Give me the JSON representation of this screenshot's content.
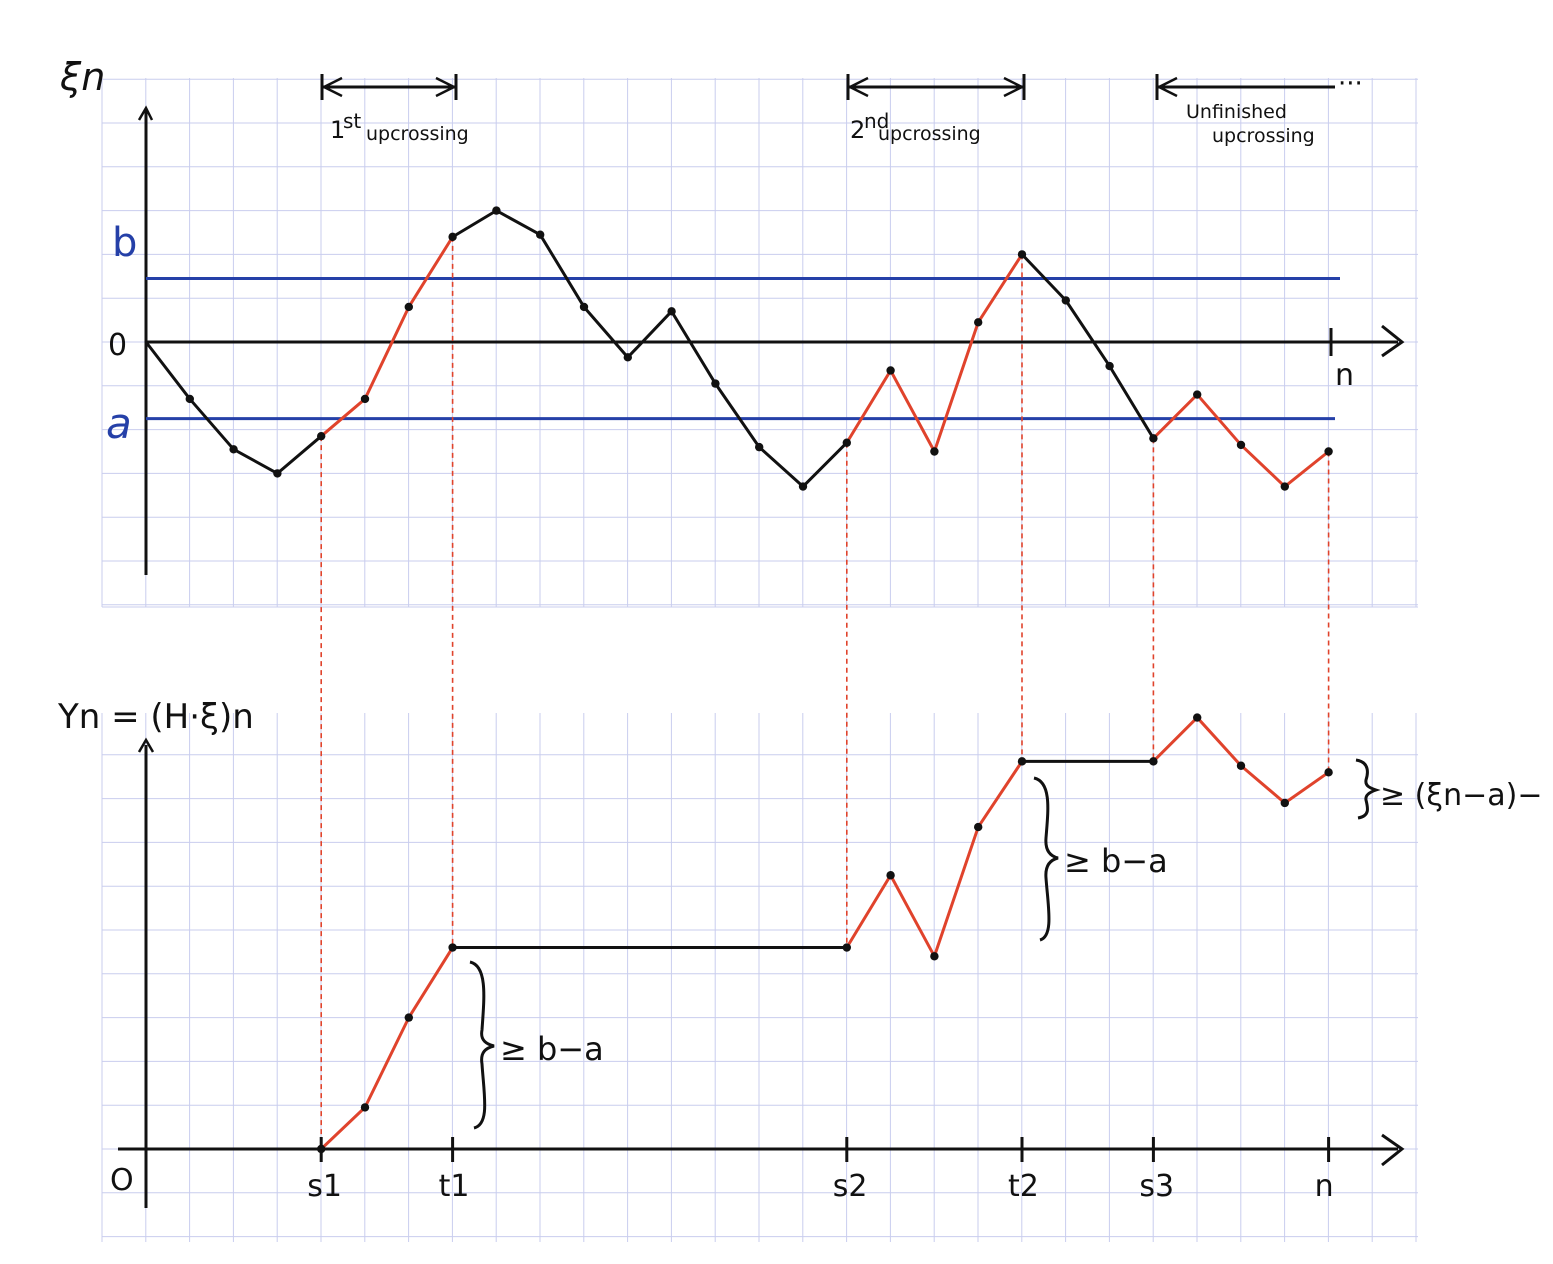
{
  "colors": {
    "grid": "#c9cdee",
    "ink": "#111111",
    "level_lines": "#2540a8",
    "upcrossing": "#e0432c",
    "guide": "#e0432c"
  },
  "top_plot": {
    "y_axis_label": "ξn",
    "x_axis_label": "n",
    "zero_label": "0",
    "level_b_label": "b",
    "level_a_label": "a",
    "level_b_value": 1.45,
    "level_a_value": -1.75,
    "brackets": [
      {
        "label_sup": "st",
        "label_pre": "1",
        "label_main": "upcrossing",
        "from": 4,
        "to": 7
      },
      {
        "label_sup": "nd",
        "label_pre": "2",
        "label_main": "upcrossing",
        "from": 16,
        "to": 20
      },
      {
        "label_line1": "Unfinished",
        "label_line2": "upcrossing",
        "from": 23,
        "to": 27,
        "trail": "···"
      }
    ],
    "path": [
      {
        "t": 0,
        "v": 0.0
      },
      {
        "t": 1,
        "v": -1.3
      },
      {
        "t": 2,
        "v": -2.45
      },
      {
        "t": 3,
        "v": -3.0
      },
      {
        "t": 4,
        "v": -2.15
      },
      {
        "t": 5,
        "v": -1.3
      },
      {
        "t": 6,
        "v": 0.8
      },
      {
        "t": 7,
        "v": 2.4
      },
      {
        "t": 8,
        "v": 3.0
      },
      {
        "t": 9,
        "v": 2.45
      },
      {
        "t": 10,
        "v": 0.8
      },
      {
        "t": 11,
        "v": -0.35
      },
      {
        "t": 12,
        "v": 0.7
      },
      {
        "t": 13,
        "v": -0.95
      },
      {
        "t": 14,
        "v": -2.4
      },
      {
        "t": 15,
        "v": -3.3
      },
      {
        "t": 16,
        "v": -2.3
      },
      {
        "t": 17,
        "v": -0.65
      },
      {
        "t": 18,
        "v": -2.5
      },
      {
        "t": 19,
        "v": 0.45
      },
      {
        "t": 20,
        "v": 2.0
      },
      {
        "t": 21,
        "v": 0.95
      },
      {
        "t": 22,
        "v": -0.55
      },
      {
        "t": 23,
        "v": -2.2
      },
      {
        "t": 24,
        "v": -1.2
      },
      {
        "t": 25,
        "v": -2.35
      },
      {
        "t": 26,
        "v": -3.3
      },
      {
        "t": 27,
        "v": -2.5
      }
    ],
    "highlight_segments": [
      [
        4,
        7
      ],
      [
        16,
        20
      ],
      [
        23,
        27
      ]
    ]
  },
  "bottom_plot": {
    "y_axis_label": "Yn = (H·ξ)n",
    "zero_label": "O",
    "x_axis_label": "n",
    "tick_labels": [
      {
        "t": 4,
        "label": "s1"
      },
      {
        "t": 7,
        "label": "t1"
      },
      {
        "t": 16,
        "label": "s2"
      },
      {
        "t": 20,
        "label": "t2"
      },
      {
        "t": 23,
        "label": "s3"
      },
      {
        "t": 27,
        "label": "n"
      }
    ],
    "brace_labels": [
      "≥ b−a",
      "≥ b−a",
      "≥ (ξn−a)−"
    ],
    "path": [
      {
        "t": 4,
        "v": 0.0
      },
      {
        "t": 5,
        "v": 0.95
      },
      {
        "t": 6,
        "v": 3.0
      },
      {
        "t": 7,
        "v": 4.6
      },
      {
        "t": 16,
        "v": 4.6
      },
      {
        "t": 17,
        "v": 6.25
      },
      {
        "t": 18,
        "v": 4.4
      },
      {
        "t": 19,
        "v": 7.35
      },
      {
        "t": 20,
        "v": 8.85
      },
      {
        "t": 23,
        "v": 8.85
      },
      {
        "t": 24,
        "v": 9.85
      },
      {
        "t": 25,
        "v": 8.75
      },
      {
        "t": 26,
        "v": 7.9
      },
      {
        "t": 27,
        "v": 8.6
      }
    ],
    "flat_segments": [
      [
        7,
        16
      ],
      [
        20,
        23
      ]
    ]
  }
}
